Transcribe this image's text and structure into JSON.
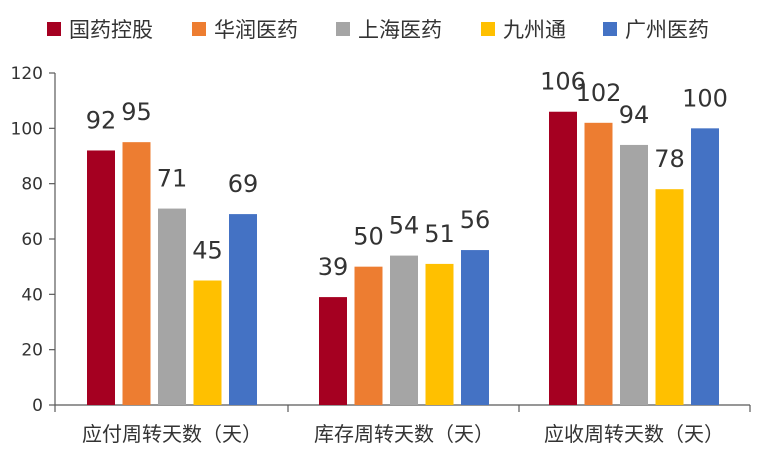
{
  "chart_data": {
    "type": "bar",
    "categories": [
      "应付周转天数（天）",
      "库存周转天数（天）",
      "应收周转天数（天）"
    ],
    "series": [
      {
        "name": "国药控股",
        "color": "#A50021",
        "values": [
          92,
          39,
          106
        ]
      },
      {
        "name": "华润医药",
        "color": "#ED7D31",
        "values": [
          95,
          50,
          102
        ]
      },
      {
        "name": "上海医药",
        "color": "#A5A5A5",
        "values": [
          71,
          54,
          94
        ]
      },
      {
        "name": "九州通",
        "color": "#FFC000",
        "values": [
          45,
          51,
          78
        ]
      },
      {
        "name": "广州医药",
        "color": "#4472C4",
        "values": [
          69,
          56,
          100
        ]
      }
    ],
    "yticks": [
      "0",
      "20",
      "40",
      "60",
      "80",
      "100",
      "120"
    ],
    "ylim": [
      0,
      120
    ],
    "grid": false,
    "legend_position": "top",
    "data_labels": true
  }
}
